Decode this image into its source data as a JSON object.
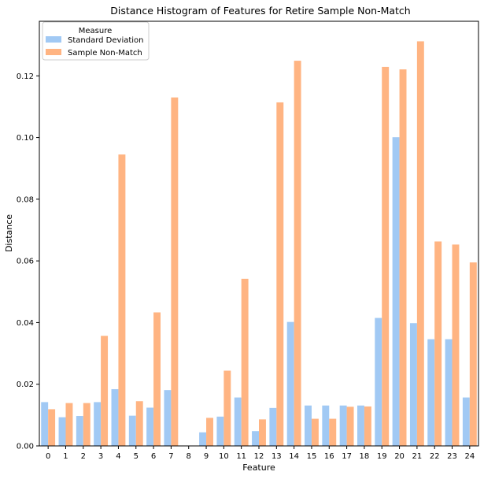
{
  "chart_data": {
    "type": "bar",
    "title": "Distance Histogram of Features for Retire Sample Non-Match",
    "xlabel": "Feature",
    "ylabel": "Distance",
    "categories": [
      "0",
      "1",
      "2",
      "3",
      "4",
      "5",
      "6",
      "7",
      "8",
      "9",
      "10",
      "11",
      "12",
      "13",
      "14",
      "15",
      "16",
      "17",
      "18",
      "19",
      "20",
      "21",
      "22",
      "23",
      "24"
    ],
    "series": [
      {
        "name": "Standard Deviation",
        "color": "#a1c9f4",
        "values": [
          0.0142,
          0.0093,
          0.0097,
          0.0142,
          0.0184,
          0.0098,
          0.0124,
          0.0181,
          0.0,
          0.0044,
          0.0095,
          0.0157,
          0.0048,
          0.0123,
          0.0402,
          0.0131,
          0.0131,
          0.0131,
          0.0131,
          0.0415,
          0.1001,
          0.0398,
          0.0346,
          0.0346,
          0.0157
        ]
      },
      {
        "name": "Sample Non-Match",
        "color": "#ffb482",
        "values": [
          0.0119,
          0.0139,
          0.0139,
          0.0357,
          0.0945,
          0.0145,
          0.0433,
          0.113,
          0.0,
          0.0091,
          0.0244,
          0.0542,
          0.0086,
          0.1114,
          0.1249,
          0.0088,
          0.0088,
          0.0127,
          0.0128,
          0.1229,
          0.1221,
          0.1312,
          0.0663,
          0.0653,
          0.0595
        ]
      }
    ],
    "ylim": [
      0,
      0.1377
    ],
    "yticks": [
      "0.00",
      "0.02",
      "0.04",
      "0.06",
      "0.08",
      "0.10",
      "0.12"
    ],
    "grid": false,
    "legend": {
      "title": "Measure",
      "placement": "top-left"
    }
  }
}
